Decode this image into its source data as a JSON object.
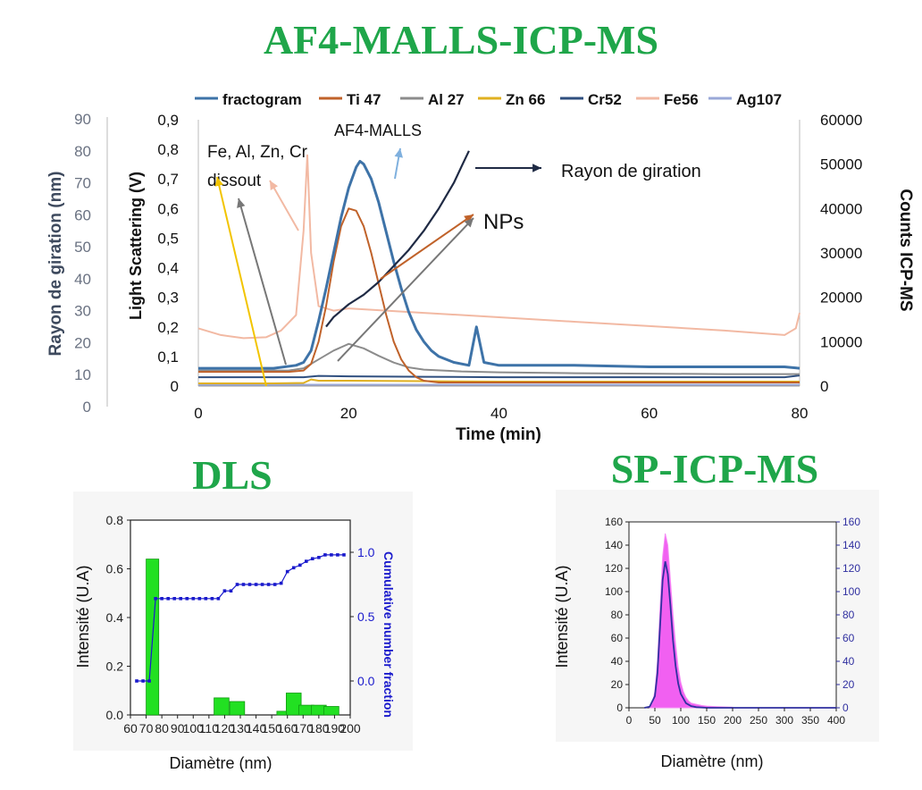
{
  "titles": {
    "af4": "AF4-MALLS-ICP-MS",
    "dls": "DLS",
    "sp": "SP-ICP-MS"
  },
  "colors": {
    "title_green": "#1fa64a",
    "fractogram": "#3e73a8",
    "ti47": "#c0622a",
    "al27": "#8c8c8c",
    "zn66": "#e0b020",
    "cr52": "#2f4f7f",
    "fe56": "#f2b9a3",
    "ag107": "#9aa8d8",
    "rg": "#1f2a44",
    "dls_bar": "#22e022",
    "dls_cum": "#1a1acc",
    "sp_hist": "#ee44ee",
    "sp_fit": "#3030a0"
  },
  "chart_data": [
    {
      "type": "line",
      "legend": [
        "fractogram",
        "Ti 47",
        "Al 27",
        "Zn 66",
        "Cr52",
        "Fe56",
        "Ag107"
      ],
      "legend_position": "top",
      "xlabel": "Time (min)",
      "ylabel_left_outer": "Rayon de giration (nm)",
      "ylabel_left_inner": "Light Scattering (V)",
      "ylabel_right": "Counts ICP-MS",
      "xlim": [
        0,
        80
      ],
      "x_ticks": [
        "0",
        "20",
        "40",
        "60",
        "80"
      ],
      "ylim_rg": [
        0,
        90
      ],
      "rg_ticks": [
        "0",
        "10",
        "20",
        "30",
        "40",
        "50",
        "60",
        "70",
        "80",
        "90"
      ],
      "ylim_ls": [
        0,
        0.9
      ],
      "ls_ticks": [
        "0",
        "0,1",
        "0,2",
        "0,3",
        "0,4",
        "0,5",
        "0,6",
        "0,7",
        "0,8",
        "0,9"
      ],
      "ylim_counts": [
        0,
        60000
      ],
      "counts_ticks": [
        "0",
        "10000",
        "20000",
        "30000",
        "40000",
        "50000",
        "60000"
      ],
      "annotations": [
        "Fe, Al, Zn, Cr",
        "dissout",
        "AF4-MALLS",
        "Rayon de giration",
        "NPs"
      ],
      "series": [
        {
          "name": "fractogram",
          "axis": "ls",
          "x": [
            0,
            10,
            13,
            14,
            15,
            16,
            17,
            18,
            19,
            20,
            21,
            21.5,
            22,
            23,
            24,
            25,
            26,
            27,
            28,
            29,
            30,
            31,
            32,
            34,
            36,
            37,
            38,
            40,
            50,
            60,
            70,
            78,
            80
          ],
          "y": [
            0.06,
            0.06,
            0.07,
            0.08,
            0.12,
            0.22,
            0.33,
            0.45,
            0.57,
            0.67,
            0.74,
            0.76,
            0.75,
            0.7,
            0.62,
            0.52,
            0.42,
            0.33,
            0.25,
            0.19,
            0.15,
            0.12,
            0.1,
            0.08,
            0.07,
            0.2,
            0.08,
            0.07,
            0.07,
            0.065,
            0.065,
            0.065,
            0.06
          ]
        },
        {
          "name": "Ti 47",
          "axis": "counts",
          "x": [
            0,
            12,
            14,
            15,
            16,
            17,
            18,
            19,
            20,
            21,
            22,
            23,
            24,
            25,
            26,
            27,
            28,
            29,
            30,
            32,
            80
          ],
          "y": [
            3200,
            3200,
            3500,
            5000,
            10000,
            18000,
            28000,
            36000,
            40000,
            39500,
            36000,
            30000,
            23000,
            16000,
            10000,
            6000,
            3500,
            2000,
            1200,
            800,
            800
          ]
        },
        {
          "name": "Al 27",
          "axis": "counts",
          "x": [
            0,
            12,
            14,
            16,
            18,
            20,
            22,
            24,
            26,
            28,
            30,
            35,
            40,
            50,
            60,
            70,
            80
          ],
          "y": [
            3500,
            3500,
            4000,
            6000,
            8000,
            9500,
            8500,
            6800,
            5300,
            4200,
            3700,
            3300,
            3100,
            2900,
            2800,
            2700,
            2700
          ]
        },
        {
          "name": "Zn 66",
          "axis": "counts",
          "x": [
            0,
            10,
            14,
            15,
            16,
            20,
            30,
            40,
            60,
            80
          ],
          "y": [
            600,
            600,
            700,
            1500,
            1200,
            1200,
            1100,
            1000,
            1000,
            1000
          ]
        },
        {
          "name": "Cr52",
          "axis": "counts",
          "x": [
            0,
            14,
            16,
            20,
            30,
            40,
            60,
            78,
            80
          ],
          "y": [
            2000,
            2000,
            2300,
            2200,
            2100,
            2000,
            2000,
            2000,
            2400
          ]
        },
        {
          "name": "Fe56",
          "axis": "counts",
          "x": [
            0,
            3,
            6,
            9,
            11,
            13,
            14,
            14.5,
            15,
            16,
            18,
            20,
            30,
            40,
            50,
            60,
            70,
            78,
            79.5,
            80
          ],
          "y": [
            13000,
            11500,
            10800,
            11000,
            12500,
            16000,
            35000,
            52000,
            30000,
            18000,
            17000,
            17500,
            16500,
            15500,
            14500,
            13500,
            12500,
            11500,
            13000,
            16500
          ]
        },
        {
          "name": "Ag107",
          "axis": "counts",
          "x": [
            0,
            20,
            40,
            60,
            80
          ],
          "y": [
            300,
            300,
            300,
            300,
            300
          ]
        },
        {
          "name": "Rayon de giration",
          "axis": "rg",
          "x": [
            17,
            18,
            20,
            22,
            24,
            26,
            28,
            30,
            32,
            34,
            35,
            36
          ],
          "y": [
            25,
            28,
            32,
            35,
            39,
            44,
            49,
            55,
            62,
            70,
            75,
            80
          ]
        }
      ]
    },
    {
      "type": "bar",
      "xlabel": "Diamètre (nm)",
      "ylabel": "Intensité (U.A)",
      "ylabel_right": "Cumulative number fraction",
      "xlim": [
        60,
        200
      ],
      "x_ticks": [
        "60",
        "70",
        "80",
        "90",
        "100",
        "110",
        "120",
        "130",
        "140",
        "150",
        "160",
        "170",
        "180",
        "190",
        "200"
      ],
      "ylim": [
        0,
        0.8
      ],
      "y_ticks": [
        "0.0",
        "0.2",
        "0.4",
        "0.6",
        "0.8"
      ],
      "right_ticks": [
        "0.0",
        "0.5",
        "1.0"
      ],
      "bars": {
        "x": [
          74,
          118,
          128,
          158,
          164,
          172,
          180,
          188
        ],
        "values": [
          0.64,
          0.07,
          0.055,
          0.015,
          0.09,
          0.04,
          0.04,
          0.035
        ]
      },
      "cumulative": {
        "x": [
          64,
          68,
          72,
          76,
          80,
          84,
          88,
          92,
          96,
          100,
          104,
          108,
          112,
          116,
          120,
          124,
          128,
          132,
          136,
          140,
          144,
          148,
          152,
          156,
          160,
          164,
          168,
          172,
          176,
          180,
          184,
          188,
          192,
          196
        ],
        "values": [
          0.0,
          0.0,
          0.0,
          0.64,
          0.64,
          0.64,
          0.64,
          0.64,
          0.64,
          0.64,
          0.64,
          0.64,
          0.64,
          0.64,
          0.7,
          0.7,
          0.75,
          0.75,
          0.75,
          0.75,
          0.75,
          0.75,
          0.75,
          0.76,
          0.85,
          0.88,
          0.9,
          0.93,
          0.95,
          0.96,
          0.98,
          0.98,
          0.98,
          0.98
        ]
      }
    },
    {
      "type": "bar",
      "xlabel": "Diamètre (nm)",
      "ylabel": "Intensité (U.A)",
      "xlim": [
        0,
        400
      ],
      "x_ticks": [
        "0",
        "50",
        "100",
        "150",
        "200",
        "250",
        "300",
        "350",
        "400"
      ],
      "ylim": [
        0,
        160
      ],
      "y_ticks": [
        "0",
        "20",
        "40",
        "60",
        "80",
        "100",
        "120",
        "140",
        "160"
      ],
      "histogram": {
        "x": [
          40,
          45,
          50,
          55,
          60,
          65,
          70,
          75,
          80,
          85,
          90,
          95,
          100,
          105,
          110,
          115,
          120,
          130,
          140,
          150,
          170,
          200
        ],
        "values": [
          1,
          4,
          14,
          40,
          85,
          130,
          150,
          140,
          110,
          80,
          55,
          35,
          22,
          14,
          9,
          6,
          4,
          3,
          2,
          1.5,
          1,
          0.5
        ]
      },
      "fit": {
        "x": [
          30,
          40,
          50,
          55,
          60,
          65,
          70,
          75,
          80,
          85,
          90,
          95,
          100,
          110,
          120,
          130,
          150,
          200,
          300,
          400
        ],
        "values": [
          0,
          1,
          10,
          30,
          70,
          110,
          126,
          115,
          88,
          58,
          36,
          21,
          12,
          4,
          1.5,
          0.5,
          0,
          0,
          0,
          0
        ]
      }
    }
  ]
}
